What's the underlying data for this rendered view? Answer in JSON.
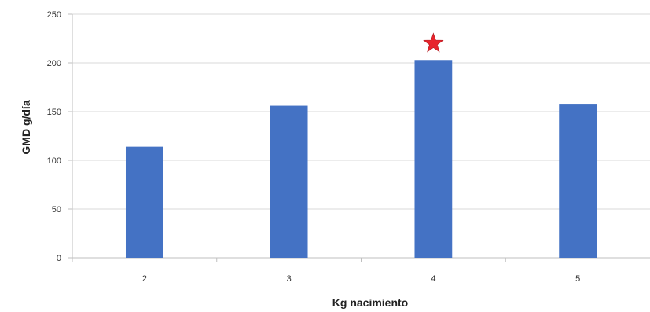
{
  "chart_data": {
    "type": "bar",
    "categories": [
      "2",
      "3",
      "4",
      "5"
    ],
    "values": [
      114,
      156,
      203,
      158
    ],
    "xlabel": "Kg nacimiento",
    "ylabel": "GMD g/día",
    "ylim": [
      0,
      250
    ],
    "yticks": [
      0,
      50,
      100,
      150,
      200,
      250
    ],
    "grid": true,
    "bar_color": "#4472C4",
    "annotations": [
      {
        "type": "star-marker",
        "category": "4",
        "color": "#E8242C"
      }
    ]
  }
}
